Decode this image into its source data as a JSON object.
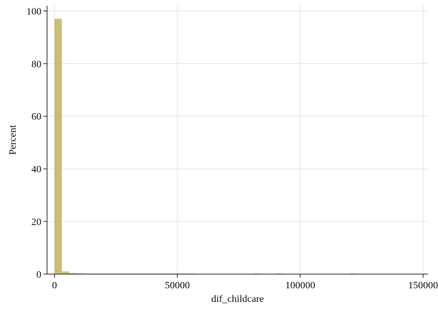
{
  "chart_data": {
    "type": "bar",
    "subtype": "histogram",
    "xlabel": "dif_childcare",
    "ylabel": "Percent",
    "xlim": [
      -3000,
      152000
    ],
    "ylim": [
      0,
      102
    ],
    "xticks": [
      0,
      50000,
      100000,
      150000
    ],
    "xtick_labels": [
      "0",
      "50000",
      "100000",
      "150000"
    ],
    "yticks": [
      0,
      20,
      40,
      60,
      80,
      100
    ],
    "ytick_labels": [
      "0",
      "20",
      "40",
      "60",
      "80",
      "100"
    ],
    "grid": true,
    "bar_color": "#c2b25a",
    "bin_width": 3000,
    "bins": [
      {
        "x0": 0,
        "x1": 3000,
        "value": 97.0
      },
      {
        "x0": 3000,
        "x1": 6000,
        "value": 1.0
      },
      {
        "x0": 6000,
        "x1": 9000,
        "value": 0.45
      },
      {
        "x0": 9000,
        "x1": 12000,
        "value": 0.3
      },
      {
        "x0": 12000,
        "x1": 15000,
        "value": 0.2
      },
      {
        "x0": 15000,
        "x1": 18000,
        "value": 0.2
      },
      {
        "x0": 18000,
        "x1": 21000,
        "value": 0.15
      },
      {
        "x0": 21000,
        "x1": 24000,
        "value": 0.15
      },
      {
        "x0": 24000,
        "x1": 27000,
        "value": 0.1
      },
      {
        "x0": 27000,
        "x1": 30000,
        "value": 0.1
      },
      {
        "x0": 30000,
        "x1": 33000,
        "value": 0.1
      },
      {
        "x0": 33000,
        "x1": 36000,
        "value": 0.1
      },
      {
        "x0": 36000,
        "x1": 39000,
        "value": 0.1
      },
      {
        "x0": 39000,
        "x1": 42000,
        "value": 0.1
      },
      {
        "x0": 42000,
        "x1": 45000,
        "value": 0.1
      },
      {
        "x0": 45000,
        "x1": 48000,
        "value": 0.1
      },
      {
        "x0": 48000,
        "x1": 51000,
        "value": 0.15
      },
      {
        "x0": 51000,
        "x1": 54000,
        "value": 0.15
      },
      {
        "x0": 54000,
        "x1": 57000,
        "value": 0.1
      },
      {
        "x0": 81000,
        "x1": 84000,
        "value": 0.25
      },
      {
        "x0": 90000,
        "x1": 93000,
        "value": 0.25
      },
      {
        "x0": 120000,
        "x1": 123000,
        "value": 0.25
      }
    ]
  }
}
